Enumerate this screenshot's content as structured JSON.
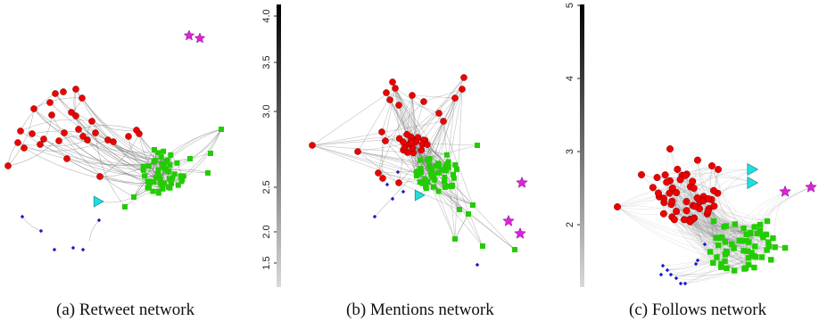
{
  "figure": {
    "panels": [
      {
        "caption": "(a) Retweet network",
        "colorbar": null
      },
      {
        "caption": "(b) Mentions network",
        "colorbar": {
          "ticks": [
            "1.5",
            "2.0",
            "2.5",
            "3.0",
            "3.5",
            "4.0"
          ],
          "gradient": [
            "#d9d9d9",
            "#000000"
          ]
        }
      },
      {
        "caption": "(c) Follows network",
        "colorbar": {
          "ticks": [
            "2",
            "3",
            "4",
            "5"
          ],
          "gradient": [
            "#d9d9d9",
            "#000000"
          ]
        }
      }
    ],
    "node_styles": {
      "group_red": {
        "shape": "circle",
        "color": "#ee0000"
      },
      "group_green": {
        "shape": "square",
        "color": "#22cc00"
      },
      "group_blue": {
        "shape": "diamond",
        "color": "#1a1acc"
      },
      "group_cyan": {
        "shape": "triangle",
        "color": "#22dddd"
      },
      "group_magenta": {
        "shape": "star",
        "color": "#dd22dd"
      }
    },
    "edge_color": "#777777"
  }
}
